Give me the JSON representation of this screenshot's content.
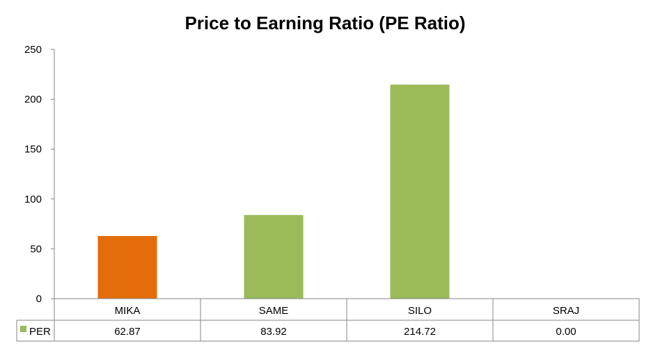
{
  "chart_data": {
    "type": "bar",
    "title": "Price to Earning Ratio (PE Ratio)",
    "categories": [
      "MIKA",
      "SAME",
      "SILO",
      "SRAJ"
    ],
    "series": [
      {
        "name": "PER",
        "values": [
          62.87,
          83.92,
          214.72,
          0.0
        ],
        "labels": [
          "62.87",
          "83.92",
          "214.72",
          "0.00"
        ]
      }
    ],
    "yticks": [
      "0",
      "50",
      "100",
      "150",
      "200",
      "250"
    ],
    "ylim": [
      0,
      250
    ],
    "grid": false,
    "legend": "data-table",
    "colors": {
      "default": "#9BBB59",
      "highlight": "#E46C0A",
      "highlight_category": "MIKA"
    }
  }
}
